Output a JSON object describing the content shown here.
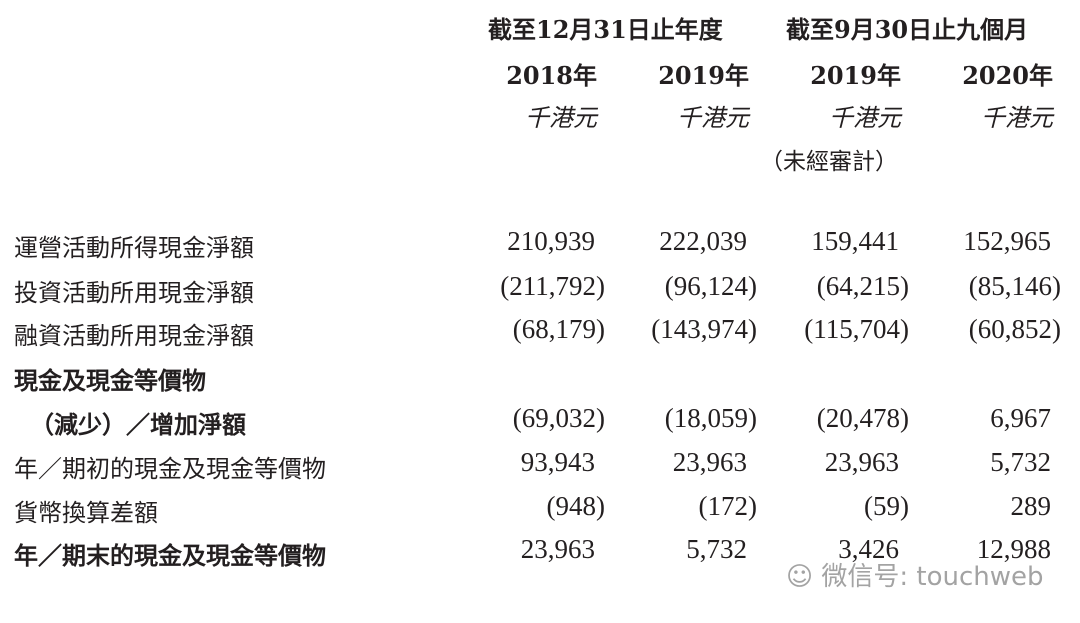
{
  "header": {
    "group1": "截至12月31日止年度",
    "group2": "截至9月30日止九個月",
    "years": [
      "2018年",
      "2019年",
      "2019年",
      "2020年"
    ],
    "units": [
      "千港元",
      "千港元",
      "千港元",
      "千港元"
    ],
    "unaudited": "（未經審計）"
  },
  "rows": [
    {
      "label": "運營活動所得現金淨額",
      "values": [
        "210,939",
        "222,039",
        "159,441",
        "152,965"
      ]
    },
    {
      "label": "投資活動所用現金淨額",
      "values": [
        "(211,792)",
        "(96,124)",
        "(64,215)",
        "(85,146)"
      ]
    },
    {
      "label": "融資活動所用現金淨額",
      "values": [
        "(68,179)",
        "(143,974)",
        "(115,704)",
        "(60,852)"
      ]
    },
    {
      "label": "現金及現金等價物",
      "values": []
    },
    {
      "label": "（減少）／增加淨額",
      "values": [
        "(69,032)",
        "(18,059)",
        "(20,478)",
        "6,967"
      ]
    },
    {
      "label": "年／期初的現金及現金等價物",
      "values": [
        "93,943",
        "23,963",
        "23,963",
        "5,732"
      ]
    },
    {
      "label": "貨幣換算差額",
      "values": [
        "(948)",
        "(172)",
        "(59)",
        "289"
      ]
    },
    {
      "label": "年／期末的現金及現金等價物",
      "values": [
        "23,963",
        "5,732",
        "3,426",
        "12,988"
      ]
    }
  ],
  "watermark": "微信号: touchweb"
}
